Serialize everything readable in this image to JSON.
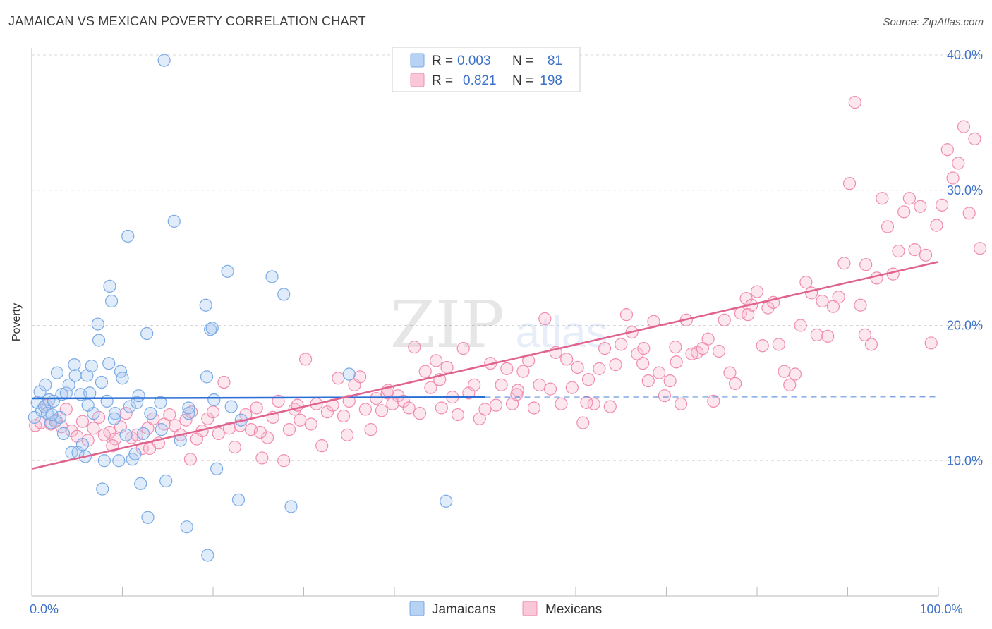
{
  "title": "JAMAICAN VS MEXICAN POVERTY CORRELATION CHART",
  "source": "Source: ZipAtlas.com",
  "watermark": {
    "zip": "ZIP",
    "atlas": "atlas"
  },
  "colors": {
    "blue": "#7aaae6",
    "blue_line": "#2a6fd6",
    "pink": "#f08cb0",
    "pink_line": "#e0628e",
    "axis_text": "#3e72c8",
    "grid": "#d8d8d8"
  },
  "legend_top": {
    "rows": [
      {
        "r_label": "R =",
        "r_value": "0.003",
        "n_label": "N =",
        "n_value": "81",
        "series": "Jamaicans"
      },
      {
        "r_label": "R =",
        "r_value": "0.821",
        "n_label": "N =",
        "n_value": "198",
        "series": "Mexicans"
      }
    ]
  },
  "chart_data": {
    "type": "scatter",
    "xlabel": "",
    "ylabel": "Poverty",
    "xlim": [
      0,
      100
    ],
    "ylim": [
      0,
      40
    ],
    "x_ticks": [
      0,
      10,
      20,
      30,
      40,
      50,
      60,
      70,
      80,
      90,
      100
    ],
    "x_tick_labels": {
      "0": "0.0%",
      "100": "100.0%"
    },
    "y_ticks": [
      10,
      20,
      30,
      40
    ],
    "y_tick_labels": [
      "10.0%",
      "20.0%",
      "30.0%",
      "40.0%"
    ],
    "legend": [
      "Jamaicans",
      "Mexicans"
    ],
    "series": [
      {
        "name": "Jamaicans",
        "color": "#7aaae6",
        "trend": {
          "x": [
            0,
            50
          ],
          "y": [
            14.6,
            14.7
          ],
          "dashed_extension_to": 100
        },
        "points": [
          [
            0.3,
            13.2
          ],
          [
            0.6,
            14.3
          ],
          [
            0.9,
            15.1
          ],
          [
            1.1,
            13.7
          ],
          [
            1.4,
            14.0
          ],
          [
            1.7,
            13.5
          ],
          [
            1.9,
            14.5
          ],
          [
            2.1,
            12.8
          ],
          [
            2.4,
            14.4
          ],
          [
            2.6,
            12.9
          ],
          [
            2.8,
            16.5
          ],
          [
            3.1,
            13.2
          ],
          [
            3.3,
            14.9
          ],
          [
            3.5,
            12.0
          ],
          [
            3.8,
            15.0
          ],
          [
            4.1,
            15.6
          ],
          [
            4.4,
            10.6
          ],
          [
            4.7,
            17.1
          ],
          [
            4.8,
            16.3
          ],
          [
            5.1,
            10.6
          ],
          [
            5.4,
            14.9
          ],
          [
            5.6,
            11.2
          ],
          [
            5.9,
            10.3
          ],
          [
            6.1,
            16.3
          ],
          [
            6.4,
            15.0
          ],
          [
            6.6,
            17.0
          ],
          [
            6.8,
            13.5
          ],
          [
            7.3,
            20.1
          ],
          [
            7.4,
            18.9
          ],
          [
            7.7,
            15.8
          ],
          [
            7.8,
            7.9
          ],
          [
            8.0,
            10.0
          ],
          [
            8.3,
            14.4
          ],
          [
            8.5,
            17.2
          ],
          [
            8.6,
            22.9
          ],
          [
            8.8,
            21.8
          ],
          [
            9.2,
            13.5
          ],
          [
            9.6,
            10.0
          ],
          [
            9.8,
            16.6
          ],
          [
            10.0,
            16.1
          ],
          [
            10.4,
            11.9
          ],
          [
            10.6,
            26.6
          ],
          [
            10.8,
            14.0
          ],
          [
            11.1,
            10.1
          ],
          [
            11.4,
            10.5
          ],
          [
            11.6,
            14.3
          ],
          [
            11.8,
            14.8
          ],
          [
            12.0,
            8.3
          ],
          [
            12.3,
            12.0
          ],
          [
            12.7,
            19.4
          ],
          [
            12.8,
            5.8
          ],
          [
            13.1,
            13.5
          ],
          [
            14.2,
            14.3
          ],
          [
            14.3,
            12.3
          ],
          [
            14.6,
            39.6
          ],
          [
            14.8,
            8.5
          ],
          [
            15.7,
            27.7
          ],
          [
            16.4,
            11.5
          ],
          [
            17.1,
            5.1
          ],
          [
            17.3,
            13.5
          ],
          [
            17.3,
            13.9
          ],
          [
            19.2,
            21.5
          ],
          [
            19.3,
            16.2
          ],
          [
            19.4,
            3.0
          ],
          [
            19.7,
            19.7
          ],
          [
            19.9,
            19.8
          ],
          [
            20.1,
            14.5
          ],
          [
            20.4,
            9.4
          ],
          [
            21.6,
            24.0
          ],
          [
            22.0,
            14.0
          ],
          [
            22.8,
            7.1
          ],
          [
            23.1,
            13.0
          ],
          [
            26.5,
            23.6
          ],
          [
            27.8,
            22.3
          ],
          [
            28.6,
            6.6
          ],
          [
            35.0,
            16.4
          ],
          [
            45.7,
            7.0
          ],
          [
            1.5,
            15.6
          ],
          [
            2.2,
            13.4
          ],
          [
            6.2,
            14.1
          ],
          [
            9.1,
            13.1
          ]
        ]
      },
      {
        "name": "Mexicans",
        "color": "#f08cb0",
        "trend": {
          "x": [
            0,
            100
          ],
          "y": [
            9.4,
            24.7
          ]
        },
        "points": [
          [
            0.4,
            12.6
          ],
          [
            1.0,
            12.8
          ],
          [
            1.6,
            14.1
          ],
          [
            2.1,
            12.7
          ],
          [
            2.7,
            13.0
          ],
          [
            3.3,
            12.5
          ],
          [
            3.8,
            13.8
          ],
          [
            4.4,
            12.2
          ],
          [
            5.0,
            11.8
          ],
          [
            5.6,
            12.9
          ],
          [
            6.2,
            11.5
          ],
          [
            6.8,
            12.4
          ],
          [
            7.4,
            13.2
          ],
          [
            8.0,
            11.9
          ],
          [
            8.6,
            12.1
          ],
          [
            9.2,
            11.6
          ],
          [
            9.8,
            12.5
          ],
          [
            10.4,
            13.5
          ],
          [
            11.0,
            11.7
          ],
          [
            11.6,
            11.9
          ],
          [
            12.2,
            10.9
          ],
          [
            12.8,
            12.4
          ],
          [
            13.4,
            13.1
          ],
          [
            14.0,
            11.3
          ],
          [
            14.6,
            12.7
          ],
          [
            15.2,
            13.4
          ],
          [
            15.8,
            12.6
          ],
          [
            16.4,
            11.9
          ],
          [
            17.0,
            13.0
          ],
          [
            17.6,
            13.6
          ],
          [
            18.2,
            11.6
          ],
          [
            18.8,
            12.2
          ],
          [
            19.4,
            13.1
          ],
          [
            20.0,
            13.6
          ],
          [
            20.6,
            12.0
          ],
          [
            21.2,
            15.8
          ],
          [
            21.8,
            12.4
          ],
          [
            22.4,
            11.0
          ],
          [
            23.0,
            12.6
          ],
          [
            23.6,
            13.4
          ],
          [
            24.2,
            12.3
          ],
          [
            24.8,
            13.9
          ],
          [
            25.4,
            10.2
          ],
          [
            26.0,
            11.7
          ],
          [
            26.6,
            13.2
          ],
          [
            27.2,
            14.4
          ],
          [
            27.8,
            10.0
          ],
          [
            28.4,
            12.3
          ],
          [
            29.0,
            13.8
          ],
          [
            29.6,
            13.0
          ],
          [
            30.2,
            17.5
          ],
          [
            30.8,
            12.7
          ],
          [
            31.4,
            14.2
          ],
          [
            32.0,
            11.1
          ],
          [
            32.6,
            13.6
          ],
          [
            33.2,
            14.1
          ],
          [
            33.8,
            16.1
          ],
          [
            34.4,
            13.3
          ],
          [
            35.0,
            14.4
          ],
          [
            35.6,
            15.6
          ],
          [
            36.2,
            16.2
          ],
          [
            36.8,
            13.8
          ],
          [
            37.4,
            12.3
          ],
          [
            38.0,
            14.6
          ],
          [
            38.6,
            13.7
          ],
          [
            39.2,
            15.0
          ],
          [
            39.8,
            14.2
          ],
          [
            40.4,
            14.8
          ],
          [
            41.0,
            14.4
          ],
          [
            41.6,
            13.9
          ],
          [
            42.2,
            18.4
          ],
          [
            42.8,
            13.5
          ],
          [
            43.4,
            16.6
          ],
          [
            44.0,
            15.4
          ],
          [
            44.6,
            17.4
          ],
          [
            45.2,
            13.9
          ],
          [
            45.8,
            16.9
          ],
          [
            46.4,
            14.7
          ],
          [
            47.0,
            13.4
          ],
          [
            47.6,
            18.3
          ],
          [
            48.2,
            15.0
          ],
          [
            48.8,
            15.6
          ],
          [
            49.4,
            13.1
          ],
          [
            50.0,
            13.8
          ],
          [
            50.6,
            17.2
          ],
          [
            51.2,
            14.1
          ],
          [
            51.8,
            15.6
          ],
          [
            52.4,
            16.8
          ],
          [
            53.0,
            14.2
          ],
          [
            53.6,
            15.2
          ],
          [
            54.2,
            16.6
          ],
          [
            54.8,
            17.4
          ],
          [
            55.4,
            13.9
          ],
          [
            56.0,
            15.6
          ],
          [
            56.6,
            20.5
          ],
          [
            57.2,
            15.3
          ],
          [
            57.8,
            18.0
          ],
          [
            58.4,
            14.2
          ],
          [
            59.0,
            17.5
          ],
          [
            59.6,
            15.4
          ],
          [
            60.2,
            16.9
          ],
          [
            60.8,
            12.8
          ],
          [
            61.4,
            16.0
          ],
          [
            62.0,
            14.2
          ],
          [
            62.6,
            16.8
          ],
          [
            63.2,
            18.3
          ],
          [
            63.8,
            14.0
          ],
          [
            64.4,
            17.1
          ],
          [
            65.0,
            18.6
          ],
          [
            65.6,
            20.8
          ],
          [
            66.2,
            19.5
          ],
          [
            66.8,
            17.9
          ],
          [
            67.4,
            17.2
          ],
          [
            68.0,
            15.9
          ],
          [
            68.6,
            20.3
          ],
          [
            69.2,
            16.5
          ],
          [
            69.8,
            14.8
          ],
          [
            70.4,
            15.9
          ],
          [
            71.0,
            18.4
          ],
          [
            71.6,
            14.2
          ],
          [
            72.2,
            20.4
          ],
          [
            72.8,
            17.9
          ],
          [
            73.4,
            18.0
          ],
          [
            74.0,
            18.3
          ],
          [
            74.6,
            19.0
          ],
          [
            75.2,
            14.4
          ],
          [
            75.8,
            18.1
          ],
          [
            76.4,
            20.4
          ],
          [
            77.0,
            16.5
          ],
          [
            77.6,
            15.7
          ],
          [
            78.2,
            20.9
          ],
          [
            78.8,
            22.0
          ],
          [
            79.4,
            21.5
          ],
          [
            80.0,
            22.5
          ],
          [
            80.6,
            18.5
          ],
          [
            81.2,
            21.3
          ],
          [
            81.8,
            21.7
          ],
          [
            82.4,
            18.6
          ],
          [
            83.0,
            16.6
          ],
          [
            83.6,
            15.6
          ],
          [
            84.2,
            16.4
          ],
          [
            84.8,
            20.0
          ],
          [
            85.4,
            23.2
          ],
          [
            86.0,
            22.4
          ],
          [
            86.6,
            19.3
          ],
          [
            87.2,
            21.8
          ],
          [
            87.8,
            19.2
          ],
          [
            88.4,
            21.4
          ],
          [
            89.0,
            22.1
          ],
          [
            89.6,
            24.6
          ],
          [
            90.2,
            30.5
          ],
          [
            90.8,
            36.5
          ],
          [
            91.4,
            21.5
          ],
          [
            92.0,
            24.5
          ],
          [
            92.6,
            18.6
          ],
          [
            93.2,
            23.5
          ],
          [
            93.8,
            29.4
          ],
          [
            94.4,
            27.3
          ],
          [
            95.0,
            23.8
          ],
          [
            95.6,
            25.5
          ],
          [
            96.2,
            28.4
          ],
          [
            96.8,
            29.4
          ],
          [
            97.4,
            25.6
          ],
          [
            98.0,
            28.8
          ],
          [
            98.6,
            25.2
          ],
          [
            99.2,
            18.7
          ],
          [
            99.8,
            27.4
          ],
          [
            100.4,
            28.9
          ],
          [
            101.0,
            33.0
          ],
          [
            101.6,
            30.9
          ],
          [
            102.2,
            32.0
          ],
          [
            102.8,
            34.7
          ],
          [
            103.4,
            28.3
          ],
          [
            104.0,
            33.8
          ],
          [
            104.6,
            25.7
          ],
          [
            34.8,
            11.9
          ],
          [
            13.0,
            10.9
          ],
          [
            17.5,
            10.1
          ],
          [
            61.2,
            14.3
          ],
          [
            39.3,
            15.2
          ],
          [
            79.0,
            20.8
          ],
          [
            25.2,
            12.1
          ],
          [
            67.5,
            18.3
          ],
          [
            8.9,
            11.1
          ],
          [
            53.5,
            14.9
          ],
          [
            29.3,
            14.1
          ],
          [
            91.9,
            19.3
          ],
          [
            45.0,
            16.0
          ],
          [
            71.1,
            17.3
          ]
        ]
      }
    ]
  },
  "bottom_legend": {
    "items": [
      "Jamaicans",
      "Mexicans"
    ]
  }
}
